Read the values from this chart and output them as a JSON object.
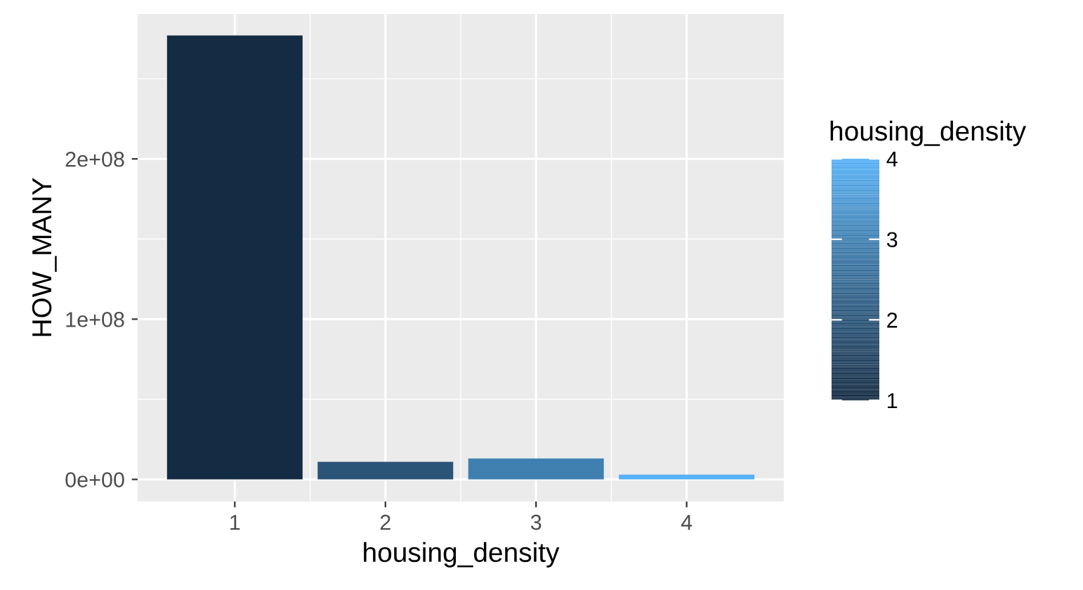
{
  "chart_data": {
    "type": "bar",
    "xlabel": "housing_density",
    "ylabel": "HOW_MANY",
    "legend_title": "housing_density",
    "x": [
      1,
      2,
      3,
      4
    ],
    "values": [
      277000000,
      11000000,
      13000000,
      3000000
    ],
    "cvalues": [
      1,
      2,
      3,
      4
    ],
    "colors": [
      "#132b43",
      "#2a5478",
      "#3f80b1",
      "#56b1f7"
    ],
    "clim": [
      1,
      4
    ],
    "cticks": [
      1,
      2,
      3,
      4
    ],
    "xlim": [
      0.355,
      4.645
    ],
    "xticks": [
      1,
      2,
      3,
      4
    ],
    "ylim": [
      -13800000,
      290400000
    ],
    "yticks": [
      {
        "value": 0,
        "label": "0e+00"
      },
      {
        "value": 100000000,
        "label": "1e+08"
      },
      {
        "value": 200000000,
        "label": "2e+08"
      }
    ],
    "grid": true
  }
}
